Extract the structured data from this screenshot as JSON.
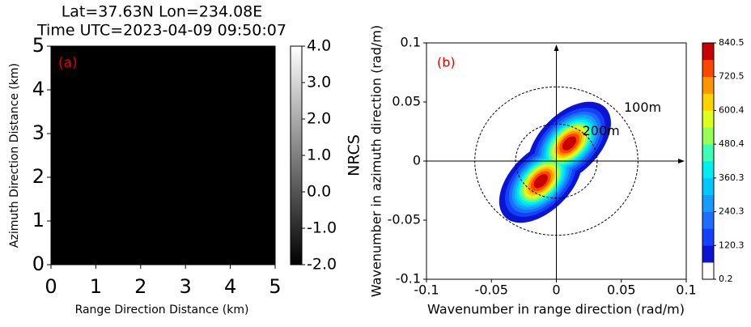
{
  "chart_data": [
    {
      "type": "image",
      "title": [
        "Lat=37.63N Lon=234.08E",
        "Time UTC=2023-04-09 09:50:07"
      ],
      "panel_label": "(a)",
      "xlabel": "Range Direction Distance (km)",
      "ylabel": "Azimuth Direction Distance (km)",
      "xlim": [
        0,
        5
      ],
      "ylim": [
        0,
        5
      ],
      "xticks": [
        0,
        1,
        2,
        3,
        4,
        5
      ],
      "yticks": [
        0,
        1,
        2,
        3,
        4,
        5
      ],
      "colorbar": {
        "label": "NRCS",
        "lim": [
          -2,
          4
        ],
        "ticks": [
          {
            "value": -2,
            "label": "-2.0"
          },
          {
            "value": -1,
            "label": "-1.0"
          },
          {
            "value": 0,
            "label": "0.0"
          },
          {
            "value": 1,
            "label": "1.0"
          },
          {
            "value": 2,
            "label": "2.0"
          },
          {
            "value": 3,
            "label": "3.0"
          },
          {
            "value": 4,
            "label": "4.0"
          }
        ],
        "colors": [
          "#000000",
          "#ffffff"
        ]
      }
    },
    {
      "type": "contour",
      "panel_label": "(b)",
      "xlabel": "Wavenumber in range direction (rad/m)",
      "ylabel": "Wavenumber in azimuth direction (rad/m)",
      "xlim": [
        -0.1,
        0.1
      ],
      "ylim": [
        -0.1,
        0.1
      ],
      "xticks": [
        -0.1,
        -0.05,
        0,
        0.05,
        0.1
      ],
      "yticks": [
        -0.1,
        -0.05,
        0,
        0.05,
        0.1
      ],
      "circles": [
        {
          "label": "100m",
          "radius": 0.0628
        },
        {
          "label": "200m",
          "radius": 0.0314
        }
      ],
      "peaks": [
        {
          "x": 0.01,
          "y": 0.015,
          "value": 840.5
        },
        {
          "x": -0.012,
          "y": -0.017,
          "value": 840.5
        }
      ],
      "colorbar": {
        "lim": [
          0.2,
          840.5
        ],
        "ticks": [
          0.2,
          120.3,
          240.3,
          360.3,
          480.4,
          600.4,
          720.5,
          840.5
        ],
        "colors": [
          "#ffffff",
          "#0a14d2",
          "#1440ff",
          "#1c6eff",
          "#149cff",
          "#00c8ff",
          "#00eef0",
          "#3cffb4",
          "#96ff5a",
          "#dcff1e",
          "#ffd200",
          "#ff9600",
          "#ff4600",
          "#c80000"
        ]
      }
    }
  ]
}
